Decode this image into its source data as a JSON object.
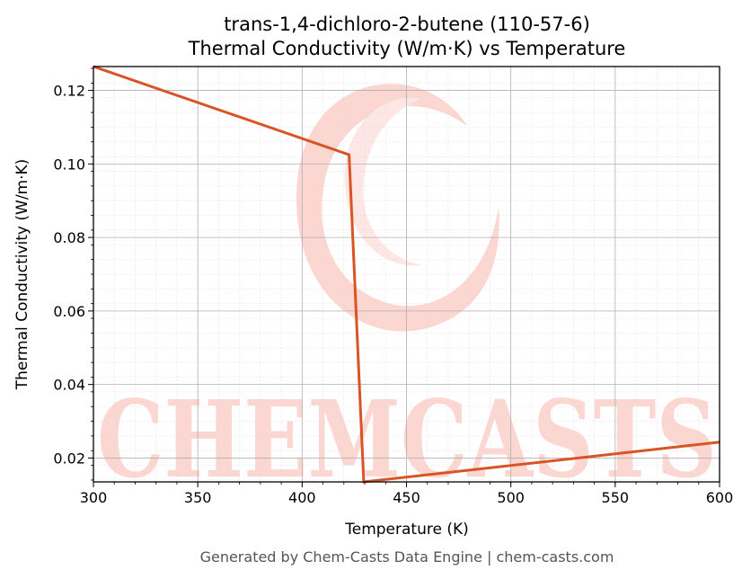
{
  "chart_data": {
    "type": "line",
    "title": "trans-1,4-dichloro-2-butene (110-57-6)",
    "subtitle": "Thermal Conductivity (W/m·K) vs Temperature",
    "xlabel": "Temperature (K)",
    "ylabel": "Thermal Conductivity (W/m·K)",
    "xlim": [
      300,
      600
    ],
    "ylim": [
      0.0135,
      0.1265
    ],
    "xticks": [
      300,
      350,
      400,
      450,
      500,
      550,
      600
    ],
    "yticks": [
      0.02,
      0.04,
      0.06,
      0.08,
      0.1,
      0.12
    ],
    "xtick_labels": [
      "300",
      "350",
      "400",
      "450",
      "500",
      "550",
      "600"
    ],
    "ytick_labels": [
      "0.02",
      "0.04",
      "0.06",
      "0.08",
      "0.10",
      "0.12"
    ],
    "grid": true,
    "series": [
      {
        "color": "#d95425",
        "x": [
          300,
          422.5,
          429.5,
          600
        ],
        "y": [
          0.1265,
          0.1025,
          0.0135,
          0.0243
        ]
      }
    ]
  },
  "watermark": {
    "text": "CHEMCASTS",
    "color": "#fcd2cc"
  },
  "footer": {
    "text": "Generated by Chem-Casts Data Engine | chem-casts.com"
  }
}
